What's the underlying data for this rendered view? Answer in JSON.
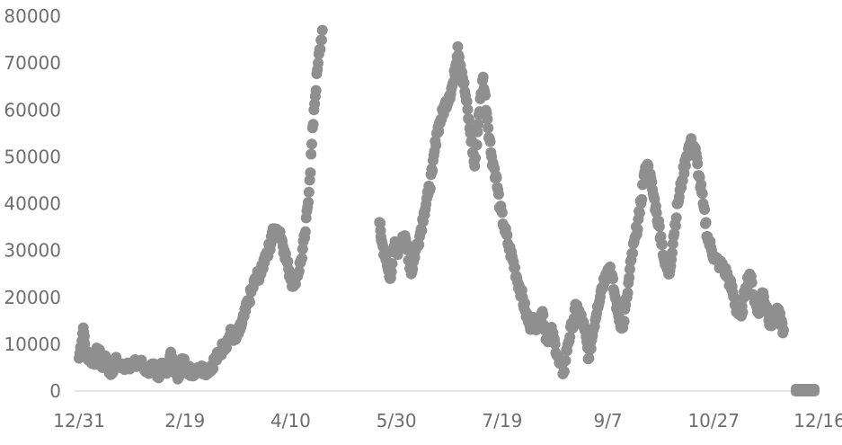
{
  "chart_data": {
    "type": "scatter",
    "title": "",
    "xlabel": "",
    "ylabel": "",
    "ylim": [
      0,
      80000
    ],
    "yticks": [
      "0",
      "10000",
      "20000",
      "30000",
      "40000",
      "50000",
      "60000",
      "70000",
      "80000"
    ],
    "xticks": [
      {
        "label": "12/31",
        "day": 0
      },
      {
        "label": "2/19",
        "day": 50
      },
      {
        "label": "4/10",
        "day": 100
      },
      {
        "label": "5/30",
        "day": 150
      },
      {
        "label": "7/19",
        "day": 200
      },
      {
        "label": "9/7",
        "day": 250
      },
      {
        "label": "10/27",
        "day": 300
      },
      {
        "label": "12/16",
        "day": 350
      }
    ],
    "xlim_days": [
      0,
      350
    ],
    "gap_days": [
      112,
      142
    ],
    "grid": false,
    "legend": "bottom-right",
    "colors": {
      "marker": "#8f8f8f",
      "axis": "#e6e6e6",
      "text": "#6e6e6e"
    },
    "series": [
      {
        "values": [
          [
            0,
            7000
          ],
          [
            2,
            13500
          ],
          [
            3,
            8000
          ],
          [
            5,
            7500
          ],
          [
            7,
            6000
          ],
          [
            9,
            9000
          ],
          [
            11,
            5000
          ],
          [
            13,
            7000
          ],
          [
            15,
            3500
          ],
          [
            17,
            6500
          ],
          [
            20,
            5000
          ],
          [
            23,
            6000
          ],
          [
            26,
            5500
          ],
          [
            29,
            6000
          ],
          [
            32,
            4500
          ],
          [
            35,
            5000
          ],
          [
            37,
            3000
          ],
          [
            39,
            6000
          ],
          [
            41,
            4500
          ],
          [
            43,
            7500
          ],
          [
            45,
            5000
          ],
          [
            47,
            3500
          ],
          [
            49,
            6500
          ],
          [
            51,
            5000
          ],
          [
            53,
            4000
          ],
          [
            56,
            5000
          ],
          [
            59,
            4500
          ],
          [
            62,
            5000
          ],
          [
            64,
            6500
          ],
          [
            66,
            7500
          ],
          [
            68,
            9500
          ],
          [
            70,
            10500
          ],
          [
            72,
            12500
          ],
          [
            74,
            11000
          ],
          [
            76,
            13000
          ],
          [
            78,
            16000
          ],
          [
            80,
            19000
          ],
          [
            82,
            22000
          ],
          [
            84,
            24500
          ],
          [
            86,
            25000
          ],
          [
            88,
            29000
          ],
          [
            90,
            30500
          ],
          [
            91,
            33000
          ],
          [
            92,
            34000
          ],
          [
            93,
            33500
          ],
          [
            95,
            34000
          ],
          [
            97,
            30000
          ],
          [
            99,
            26000
          ],
          [
            101,
            23000
          ],
          [
            103,
            24500
          ],
          [
            105,
            28000
          ],
          [
            107,
            34000
          ],
          [
            109,
            45000
          ],
          [
            111,
            60000
          ],
          [
            113,
            70000
          ],
          [
            115,
            77000
          ],
          [
            142,
            36000
          ],
          [
            143,
            32000
          ],
          [
            145,
            28000
          ],
          [
            147,
            24000
          ],
          [
            149,
            31000
          ],
          [
            151,
            30000
          ],
          [
            153,
            33000
          ],
          [
            155,
            31000
          ],
          [
            157,
            25000
          ],
          [
            159,
            30000
          ],
          [
            161,
            33000
          ],
          [
            163,
            38000
          ],
          [
            165,
            42000
          ],
          [
            167,
            47000
          ],
          [
            169,
            55000
          ],
          [
            171,
            58000
          ],
          [
            173,
            61000
          ],
          [
            175,
            63000
          ],
          [
            177,
            66000
          ],
          [
            179,
            73500
          ],
          [
            181,
            68000
          ],
          [
            183,
            62000
          ],
          [
            185,
            55000
          ],
          [
            187,
            48000
          ],
          [
            189,
            59000
          ],
          [
            191,
            67000
          ],
          [
            193,
            58000
          ],
          [
            195,
            50000
          ],
          [
            197,
            46000
          ],
          [
            199,
            39000
          ],
          [
            201,
            35000
          ],
          [
            203,
            31000
          ],
          [
            205,
            28000
          ],
          [
            207,
            24000
          ],
          [
            209,
            21000
          ],
          [
            211,
            17000
          ],
          [
            213,
            14000
          ],
          [
            215,
            15000
          ],
          [
            217,
            13500
          ],
          [
            219,
            17000
          ],
          [
            221,
            11000
          ],
          [
            223,
            13000
          ],
          [
            225,
            10000
          ],
          [
            227,
            6000
          ],
          [
            229,
            4000
          ],
          [
            231,
            10000
          ],
          [
            233,
            14000
          ],
          [
            235,
            18000
          ],
          [
            237,
            16000
          ],
          [
            239,
            13000
          ],
          [
            241,
            7000
          ],
          [
            243,
            13000
          ],
          [
            245,
            18000
          ],
          [
            247,
            22000
          ],
          [
            249,
            25000
          ],
          [
            251,
            26500
          ],
          [
            253,
            21000
          ],
          [
            255,
            16000
          ],
          [
            257,
            13500
          ],
          [
            259,
            20000
          ],
          [
            261,
            28000
          ],
          [
            263,
            33000
          ],
          [
            265,
            38000
          ],
          [
            267,
            46000
          ],
          [
            269,
            48000
          ],
          [
            271,
            43000
          ],
          [
            273,
            38000
          ],
          [
            275,
            33000
          ],
          [
            277,
            27000
          ],
          [
            279,
            25000
          ],
          [
            281,
            33000
          ],
          [
            283,
            40000
          ],
          [
            285,
            45000
          ],
          [
            287,
            50000
          ],
          [
            289,
            53000
          ],
          [
            291,
            52000
          ],
          [
            293,
            46000
          ],
          [
            295,
            40000
          ],
          [
            297,
            33000
          ],
          [
            299,
            30000
          ],
          [
            301,
            28000
          ],
          [
            303,
            27000
          ],
          [
            305,
            26000
          ],
          [
            307,
            24000
          ],
          [
            309,
            21000
          ],
          [
            311,
            17000
          ],
          [
            313,
            16000
          ],
          [
            315,
            22000
          ],
          [
            317,
            25000
          ],
          [
            319,
            20000
          ],
          [
            321,
            17000
          ],
          [
            323,
            21000
          ],
          [
            325,
            18000
          ],
          [
            327,
            14000
          ],
          [
            329,
            17000
          ],
          [
            331,
            16000
          ],
          [
            333,
            13000
          ]
        ]
      }
    ]
  }
}
